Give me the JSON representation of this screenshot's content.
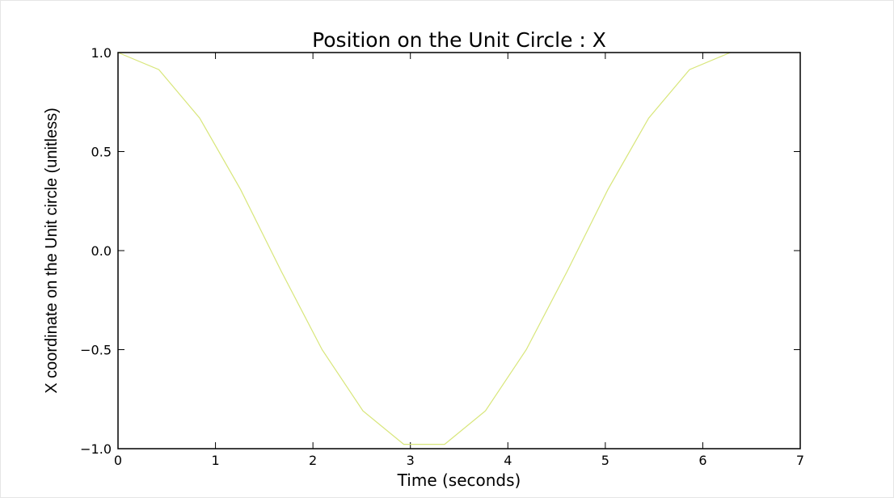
{
  "chart_data": {
    "type": "line",
    "title": "Position on the Unit Circle : X",
    "xlabel": "Time (seconds)",
    "ylabel": "X coordinate on the Unit circle (unitless)",
    "xlim": [
      0,
      7
    ],
    "ylim": [
      -1.0,
      1.0
    ],
    "xticks": [
      0,
      1,
      2,
      3,
      4,
      5,
      6,
      7
    ],
    "xtick_labels": [
      "0",
      "1",
      "2",
      "3",
      "4",
      "5",
      "6",
      "7"
    ],
    "yticks": [
      1.0,
      0.5,
      0.0,
      -0.5,
      -1.0
    ],
    "ytick_labels": [
      "1.0",
      "0.5",
      "0.0",
      "−0.5",
      "−1.0"
    ],
    "grid": false,
    "series": [
      {
        "color": "#d8e67a",
        "x": [
          0.0,
          0.419,
          0.838,
          1.257,
          1.676,
          2.094,
          2.513,
          2.932,
          3.351,
          3.77,
          4.189,
          4.608,
          5.027,
          5.445,
          5.864,
          6.283
        ],
        "y": [
          1.0,
          0.914,
          0.669,
          0.309,
          -0.105,
          -0.5,
          -0.809,
          -0.978,
          -0.978,
          -0.809,
          -0.5,
          -0.105,
          0.309,
          0.669,
          0.914,
          1.0
        ]
      }
    ]
  }
}
